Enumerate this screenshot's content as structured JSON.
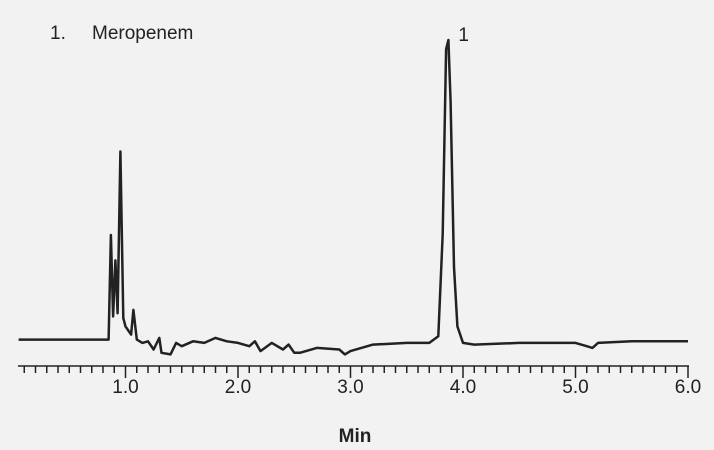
{
  "chart_data": {
    "type": "line",
    "legend_items": [
      {
        "label": "1.",
        "name": "Meropenem"
      }
    ],
    "peak_labels": [
      "1"
    ],
    "xlabel": "Min",
    "xlim": [
      0,
      6.0
    ],
    "ylim": [
      0,
      100
    ],
    "xticks": [
      {
        "value": 1.0,
        "label": "1.0"
      },
      {
        "value": 2.0,
        "label": "2.0"
      },
      {
        "value": 3.0,
        "label": "3.0"
      },
      {
        "value": 4.0,
        "label": "4.0"
      },
      {
        "value": 5.0,
        "label": "5.0"
      },
      {
        "value": 6.0,
        "label": "6.0"
      }
    ],
    "xminorticks": [
      0.1,
      0.2,
      0.3,
      0.4,
      0.5,
      0.6,
      0.7,
      0.8,
      0.9,
      1.1,
      1.2,
      1.3,
      1.4,
      1.5,
      1.6,
      1.7,
      1.8,
      1.9,
      2.1,
      2.2,
      2.3,
      2.4,
      2.5,
      2.6,
      2.7,
      2.8,
      2.9,
      3.1,
      3.2,
      3.3,
      3.4,
      3.5,
      3.6,
      3.7,
      3.8,
      3.9,
      4.1,
      4.2,
      4.3,
      4.4,
      4.5,
      4.6,
      4.7,
      4.8,
      4.9,
      5.1,
      5.2,
      5.3,
      5.4,
      5.5,
      5.6,
      5.7,
      5.8,
      5.9
    ],
    "series": [
      {
        "color": "#222222",
        "x": [
          0.05,
          0.8,
          0.85,
          0.87,
          0.89,
          0.91,
          0.93,
          0.955,
          0.98,
          1.0,
          1.05,
          1.07,
          1.1,
          1.15,
          1.2,
          1.25,
          1.3,
          1.32,
          1.4,
          1.45,
          1.5,
          1.6,
          1.7,
          1.8,
          1.9,
          2.0,
          2.1,
          2.15,
          2.2,
          2.3,
          2.4,
          2.45,
          2.5,
          2.55,
          2.7,
          2.9,
          2.95,
          3.0,
          3.2,
          3.5,
          3.7,
          3.78,
          3.82,
          3.85,
          3.87,
          3.89,
          3.92,
          3.95,
          4.0,
          4.1,
          4.5,
          5.0,
          5.1,
          5.15,
          5.2,
          5.5,
          6.0
        ],
        "values": [
          8,
          8,
          8,
          39.7,
          15,
          32,
          16,
          65,
          14.5,
          12,
          9.5,
          17,
          8,
          7,
          7.5,
          5,
          8.5,
          4,
          3.5,
          7,
          6,
          7.5,
          7,
          8.5,
          7.5,
          7,
          6,
          7.5,
          4.5,
          7,
          5,
          6.5,
          4,
          4,
          5.5,
          5,
          3.5,
          4.5,
          6.5,
          7,
          7,
          9,
          40,
          96,
          98.8,
          80,
          30,
          12,
          7,
          6.5,
          7,
          7,
          6,
          5.5,
          7,
          7.5,
          7.5
        ]
      }
    ]
  }
}
